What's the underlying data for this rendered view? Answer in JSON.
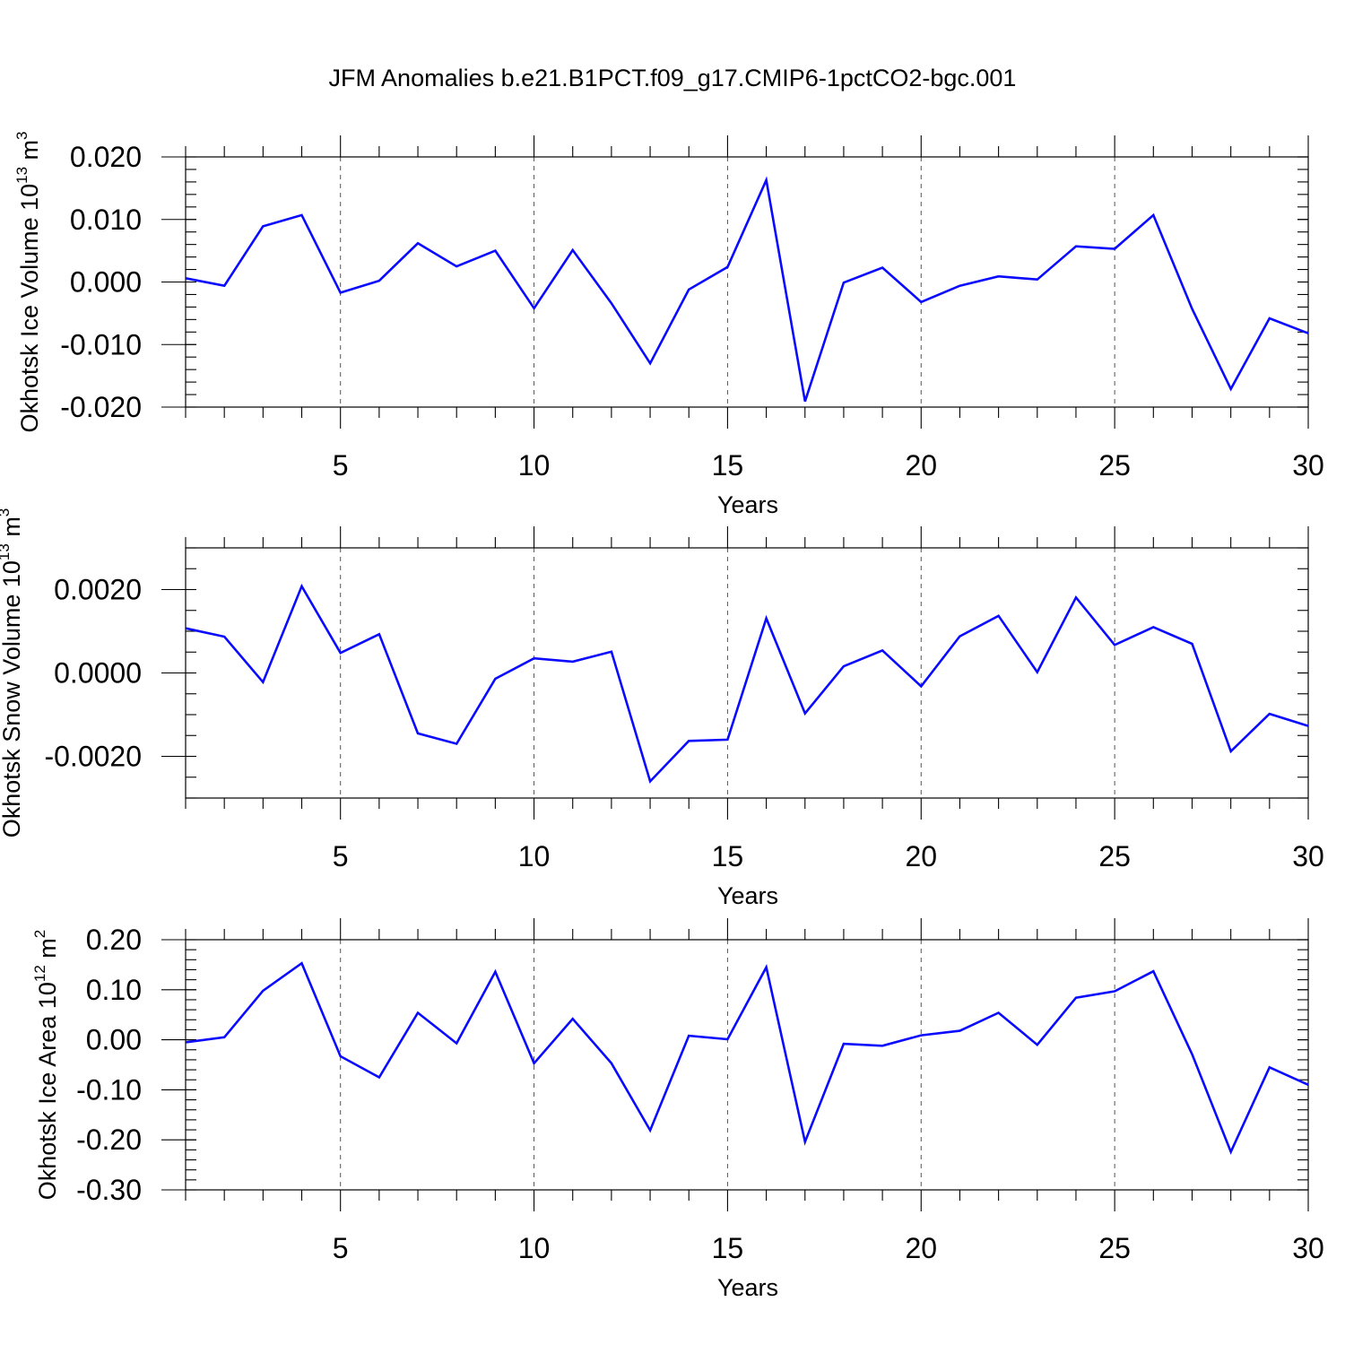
{
  "figure": {
    "title": "JFM Anomalies b.e21.B1PCT.f09_g17.CMIP6-1pctCO2-bgc.001"
  },
  "chart_data": [
    {
      "type": "line",
      "xlabel": "Years",
      "ylabel": {
        "text": "Okhotsk Ice Volume 10",
        "sup": "13",
        "unit": " m",
        "unit_sup": "3"
      },
      "xlim": [
        1,
        30
      ],
      "ylim": [
        -0.02,
        0.02
      ],
      "x_ticks": [
        5,
        10,
        15,
        20,
        25,
        30
      ],
      "y_ticks": [
        -0.02,
        -0.01,
        0.0,
        0.01,
        0.02
      ],
      "y_tick_labels": [
        "-0.020",
        "-0.010",
        "0.000",
        "0.010",
        "0.020"
      ],
      "y_minor_step": 0.002,
      "grid": "vertical dashed at major x ticks",
      "color": "#0a0aff",
      "x": [
        1,
        2,
        3,
        4,
        5,
        6,
        7,
        8,
        9,
        10,
        11,
        12,
        13,
        14,
        15,
        16,
        17,
        18,
        19,
        20,
        21,
        22,
        23,
        24,
        25,
        26,
        27,
        28,
        29,
        30
      ],
      "values": [
        0.0006,
        -0.0006,
        0.0089,
        0.0107,
        -0.0017,
        0.0002,
        0.0062,
        0.0025,
        0.005,
        -0.0042,
        0.0051,
        -0.0034,
        -0.013,
        -0.0012,
        0.0024,
        0.0163,
        -0.0191,
        -0.0001,
        0.0023,
        -0.0032,
        -0.0006,
        0.0009,
        0.0004,
        0.0057,
        0.0053,
        0.0107,
        -0.0043,
        -0.0171,
        -0.0058,
        -0.0082
      ]
    },
    {
      "type": "line",
      "xlabel": "Years",
      "ylabel": {
        "text": "Okhotsk Snow Volume 10",
        "sup": "13",
        "unit": " m",
        "unit_sup": "3"
      },
      "xlim": [
        1,
        30
      ],
      "ylim": [
        -0.003,
        0.003
      ],
      "x_ticks": [
        5,
        10,
        15,
        20,
        25,
        30
      ],
      "y_ticks": [
        -0.002,
        0.0,
        0.002
      ],
      "y_tick_labels": [
        "-0.0020",
        "0.0000",
        "0.0020"
      ],
      "y_minor_step": 0.0005,
      "grid": "vertical dashed at major x ticks",
      "color": "#0a0aff",
      "x": [
        1,
        2,
        3,
        4,
        5,
        6,
        7,
        8,
        9,
        10,
        11,
        12,
        13,
        14,
        15,
        16,
        17,
        18,
        19,
        20,
        21,
        22,
        23,
        24,
        25,
        26,
        27,
        28,
        29,
        30
      ],
      "values": [
        0.00107,
        0.00087,
        -0.00022,
        0.00208,
        0.00048,
        0.00093,
        -0.00145,
        -0.0017,
        -0.00014,
        0.00035,
        0.00027,
        0.00051,
        -0.0026,
        -0.00163,
        -0.0016,
        0.00131,
        -0.00097,
        0.00016,
        0.00054,
        -0.00032,
        0.00088,
        0.00137,
        2e-05,
        0.00181,
        0.00067,
        0.0011,
        0.0007,
        -0.00188,
        -0.00098,
        -0.00127
      ]
    },
    {
      "type": "line",
      "xlabel": "Years",
      "ylabel": {
        "text": "Okhotsk Ice Area 10",
        "sup": "12",
        "unit": " m",
        "unit_sup": "2"
      },
      "xlim": [
        1,
        30
      ],
      "ylim": [
        -0.3,
        0.2
      ],
      "x_ticks": [
        5,
        10,
        15,
        20,
        25,
        30
      ],
      "y_ticks": [
        -0.3,
        -0.2,
        -0.1,
        0.0,
        0.1,
        0.2
      ],
      "y_tick_labels": [
        "-0.30",
        "-0.20",
        "-0.10",
        "0.00",
        "0.10",
        "0.20"
      ],
      "y_minor_step": 0.02,
      "grid": "vertical dashed at major x ticks",
      "color": "#0a0aff",
      "x": [
        1,
        2,
        3,
        4,
        5,
        6,
        7,
        8,
        9,
        10,
        11,
        12,
        13,
        14,
        15,
        16,
        17,
        18,
        19,
        20,
        21,
        22,
        23,
        24,
        25,
        26,
        27,
        28,
        29,
        30
      ],
      "values": [
        -0.005,
        0.005,
        0.098,
        0.153,
        -0.033,
        -0.075,
        0.054,
        -0.007,
        0.136,
        -0.047,
        0.042,
        -0.047,
        -0.181,
        0.008,
        0.001,
        0.145,
        -0.204,
        -0.008,
        -0.012,
        0.009,
        0.018,
        0.054,
        -0.01,
        0.084,
        0.097,
        0.137,
        -0.029,
        -0.224,
        -0.055,
        -0.09
      ]
    }
  ]
}
